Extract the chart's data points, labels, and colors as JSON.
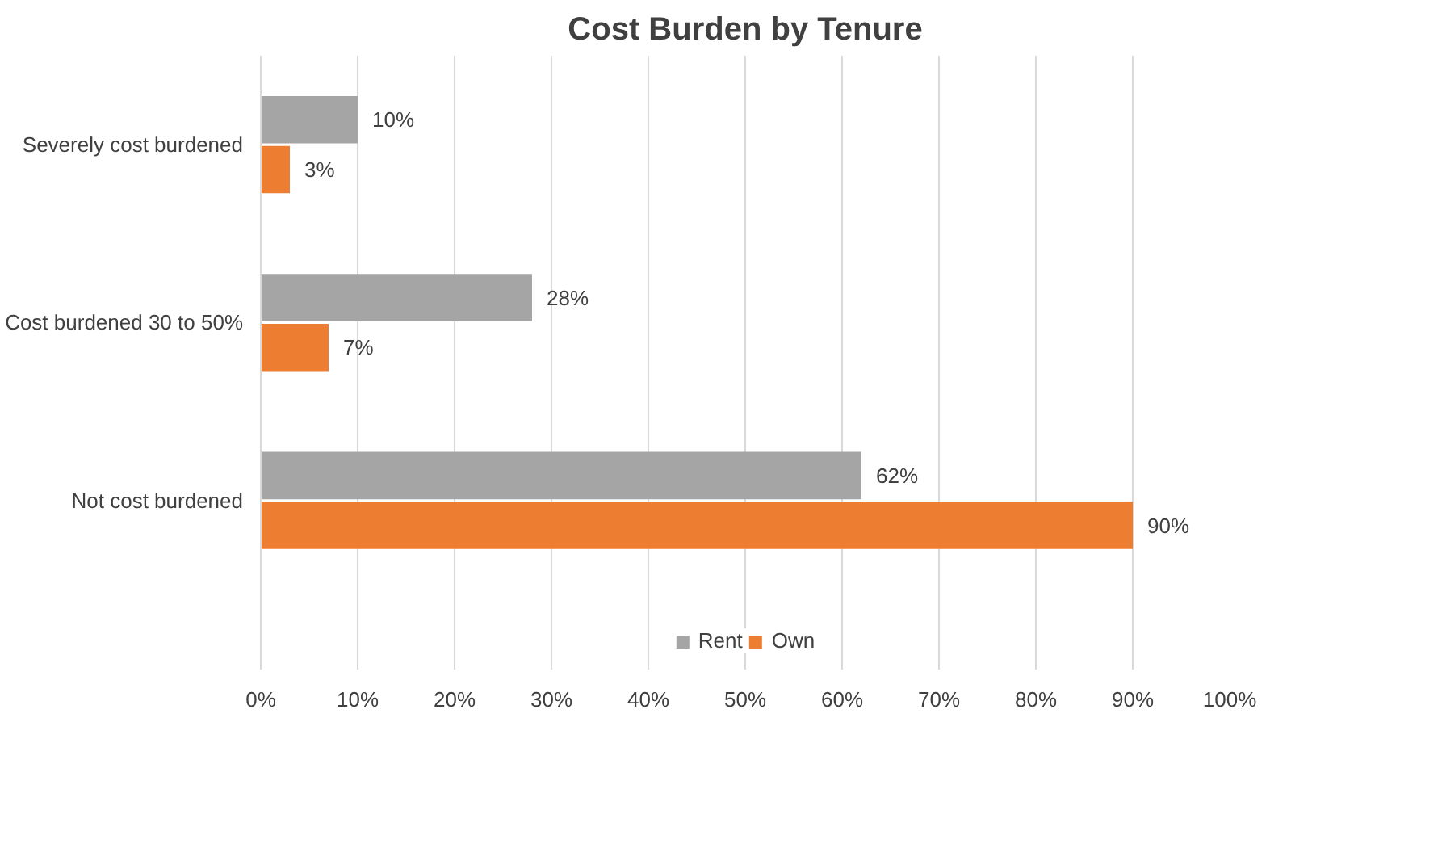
{
  "chart_data": {
    "type": "bar",
    "orientation": "horizontal",
    "title": "Cost Burden by Tenure",
    "categories": [
      "Severely cost burdened",
      "Cost burdened 30 to 50%",
      "Not cost burdened"
    ],
    "series": [
      {
        "name": "Rent",
        "color": "#a5a5a5",
        "values": [
          10,
          28,
          62
        ],
        "value_labels": [
          "10%",
          "28%",
          "62%"
        ]
      },
      {
        "name": "Own",
        "color": "#ed7d31",
        "values": [
          3,
          7,
          90
        ],
        "value_labels": [
          "3%",
          "7%",
          "90%"
        ]
      }
    ],
    "xlim": [
      0,
      100
    ],
    "xticks": [
      {
        "value": 0,
        "label": "0%"
      },
      {
        "value": 10,
        "label": "10%"
      },
      {
        "value": 20,
        "label": "20%"
      },
      {
        "value": 30,
        "label": "30%"
      },
      {
        "value": 40,
        "label": "40%"
      },
      {
        "value": 50,
        "label": "50%"
      },
      {
        "value": 60,
        "label": "60%"
      },
      {
        "value": 70,
        "label": "70%"
      },
      {
        "value": 80,
        "label": "80%"
      },
      {
        "value": 90,
        "label": "90%"
      },
      {
        "value": 100,
        "label": "100%"
      }
    ],
    "grid": "x",
    "legend": "bottom"
  }
}
